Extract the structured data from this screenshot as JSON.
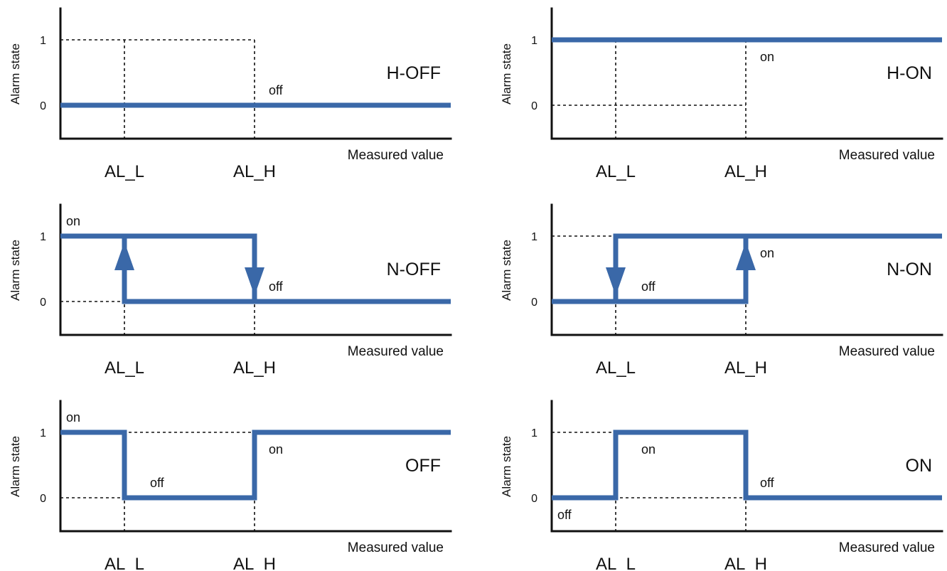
{
  "colors": {
    "signal": "#3a68a8",
    "axis": "#111111"
  },
  "panels": [
    {
      "mode": "H-OFF",
      "ylabel": "Alarm state",
      "xlabel": "Measured value",
      "ticks": [
        "1",
        "0"
      ],
      "thresholds": [
        "AL_L",
        "AL_H"
      ],
      "signal": [
        [
          "start",
          0
        ],
        [
          "end",
          0
        ]
      ],
      "arrows": [],
      "states": [
        {
          "text": "off",
          "at": "H",
          "level": "0",
          "pos": "above"
        }
      ]
    },
    {
      "mode": "H-ON",
      "ylabel": "Alarm state",
      "xlabel": "Measured value",
      "ticks": [
        "1",
        "0"
      ],
      "thresholds": [
        "AL_L",
        "AL_H"
      ],
      "signal": [
        [
          "start",
          1
        ],
        [
          "end",
          1
        ]
      ],
      "arrows": [],
      "states": [
        {
          "text": "on",
          "at": "H",
          "level": "1",
          "pos": "below"
        }
      ]
    },
    {
      "mode": "N-OFF",
      "ylabel": "Alarm state",
      "xlabel": "Measured value",
      "ticks": [
        "1",
        "0"
      ],
      "thresholds": [
        "AL_L",
        "AL_H"
      ],
      "signal": [
        [
          "start",
          1
        ],
        [
          "H",
          1
        ],
        [
          "H",
          0
        ],
        [
          "L",
          0
        ],
        [
          "L",
          1
        ]
      ],
      "signal2": [
        [
          "H",
          0
        ],
        [
          "end",
          0
        ]
      ],
      "arrows": [
        {
          "at": "L",
          "dir": "up"
        },
        {
          "at": "H",
          "dir": "down"
        }
      ],
      "states": [
        {
          "text": "on",
          "at": "start",
          "level": "1",
          "pos": "above"
        },
        {
          "text": "off",
          "at": "H",
          "level": "0",
          "pos": "above"
        }
      ]
    },
    {
      "mode": "N-ON",
      "ylabel": "Alarm state",
      "xlabel": "Measured value",
      "ticks": [
        "1",
        "0"
      ],
      "thresholds": [
        "AL_L",
        "AL_H"
      ],
      "signal": [
        [
          "start",
          0
        ],
        [
          "H",
          0
        ],
        [
          "H",
          1
        ],
        [
          "end",
          1
        ]
      ],
      "signal2": [
        [
          "L",
          0
        ],
        [
          "L",
          1
        ],
        [
          "H",
          1
        ]
      ],
      "arrows": [
        {
          "at": "L",
          "dir": "down"
        },
        {
          "at": "H",
          "dir": "up"
        }
      ],
      "states": [
        {
          "text": "off",
          "at": "mid",
          "level": "0",
          "pos": "above"
        },
        {
          "text": "on",
          "at": "H",
          "level": "1",
          "pos": "below"
        }
      ]
    },
    {
      "mode": "OFF",
      "ylabel": "Alarm state",
      "xlabel": "Measured value",
      "ticks": [
        "1",
        "0"
      ],
      "thresholds": [
        "AL_L",
        "AL_H"
      ],
      "signal": [
        [
          "start",
          1
        ],
        [
          "L",
          1
        ],
        [
          "L",
          0
        ],
        [
          "H",
          0
        ],
        [
          "H",
          1
        ],
        [
          "end",
          1
        ]
      ],
      "arrows": [],
      "states": [
        {
          "text": "on",
          "at": "start",
          "level": "1",
          "pos": "above"
        },
        {
          "text": "off",
          "at": "mid",
          "level": "0",
          "pos": "above"
        },
        {
          "text": "on",
          "at": "H",
          "level": "1",
          "pos": "below"
        }
      ]
    },
    {
      "mode": "ON",
      "ylabel": "Alarm state",
      "xlabel": "Measured value",
      "ticks": [
        "1",
        "0"
      ],
      "thresholds": [
        "AL_L",
        "AL_H"
      ],
      "signal": [
        [
          "start",
          0
        ],
        [
          "L",
          0
        ],
        [
          "L",
          1
        ],
        [
          "H",
          1
        ],
        [
          "H",
          0
        ],
        [
          "end",
          0
        ]
      ],
      "arrows": [],
      "states": [
        {
          "text": "on",
          "at": "mid",
          "level": "1",
          "pos": "below"
        },
        {
          "text": "off",
          "at": "H",
          "level": "0",
          "pos": "above"
        },
        {
          "text": "off",
          "at": "start",
          "level": "0",
          "pos": "below"
        }
      ]
    }
  ]
}
